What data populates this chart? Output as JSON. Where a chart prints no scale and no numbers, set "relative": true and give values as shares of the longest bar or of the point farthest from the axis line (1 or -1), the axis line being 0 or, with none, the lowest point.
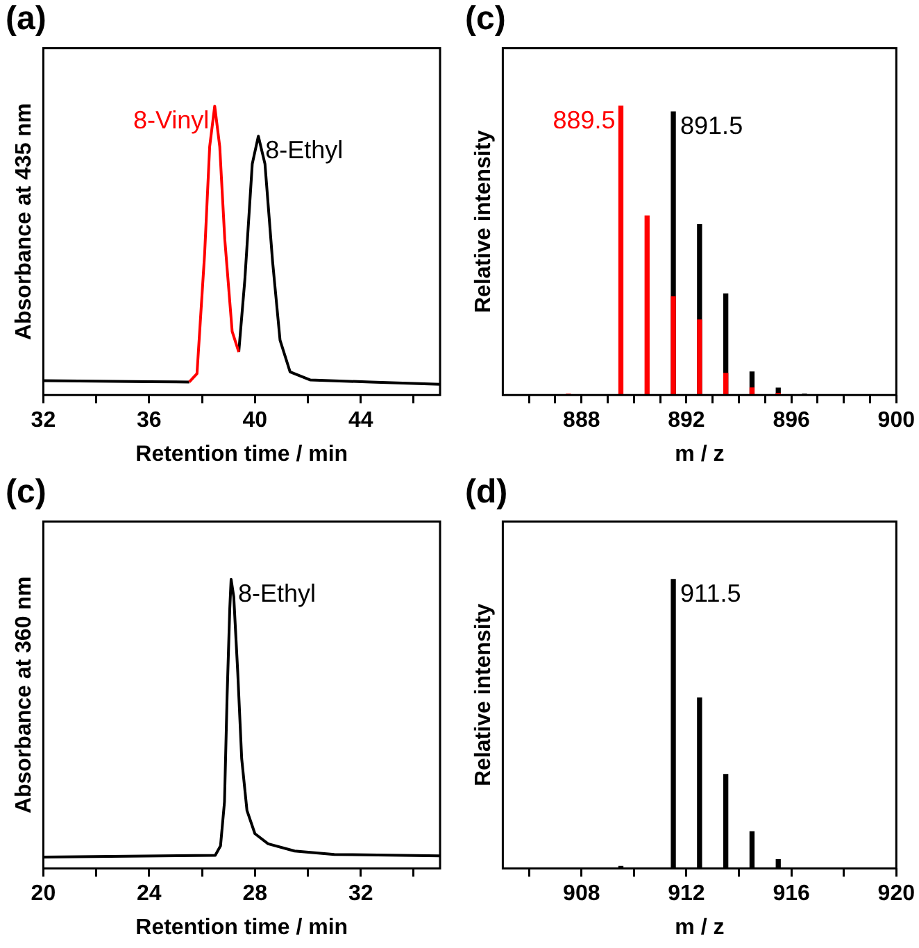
{
  "chart_data": [
    {
      "type": "line",
      "title": "(a)",
      "xlabel": "Retention time / min",
      "ylabel": "Absorbance at 435 nm",
      "relative": true,
      "xlim": [
        32,
        47
      ],
      "xticks": [
        32,
        {
          "value": 34,
          "label": null
        },
        36,
        {
          "value": 38,
          "label": null
        },
        40,
        {
          "value": 42,
          "label": null
        },
        44,
        {
          "value": 46,
          "label": null
        }
      ],
      "series": [
        {
          "name": "8-Vinyl",
          "color": "#ff0000",
          "x": [
            37.52,
            37.81,
            38.1,
            38.29,
            38.48,
            38.67,
            38.86,
            39.14,
            39.39
          ],
          "values": [
            0.045,
            0.074,
            0.49,
            0.86,
            1,
            0.86,
            0.54,
            0.22,
            0.149
          ]
        },
        {
          "name": "8-Ethyl",
          "color": "#000000",
          "x": [
            32,
            34,
            36,
            37.52,
            38.5,
            39.39,
            39.62,
            39.9,
            40.13,
            40.38,
            40.67,
            40.95,
            41.33,
            42.1,
            44.38,
            47
          ],
          "values": [
            0.05,
            0.048,
            0.046,
            0.045,
            null,
            0.149,
            0.4,
            0.8,
            0.896,
            0.8,
            0.46,
            0.19,
            0.08,
            0.052,
            0.045,
            0.037
          ]
        }
      ]
    },
    {
      "type": "bar",
      "title": "(c)",
      "xlabel": "m / z",
      "ylabel": "Relative intensity",
      "relative": true,
      "xlim": [
        885,
        900
      ],
      "xticks": [
        {
          "value": 886,
          "label": null
        },
        {
          "value": 887,
          "label": null
        },
        888,
        {
          "value": 889,
          "label": null
        },
        {
          "value": 890,
          "label": null
        },
        {
          "value": 891,
          "label": null
        },
        892,
        {
          "value": 893,
          "label": null
        },
        {
          "value": 894,
          "label": null
        },
        {
          "value": 895,
          "label": null
        },
        896,
        {
          "value": 897,
          "label": null
        },
        {
          "value": 898,
          "label": null
        },
        {
          "value": 899,
          "label": null
        },
        900
      ],
      "series": [
        {
          "color": "#ff0000",
          "x": [
            887.5,
            889.5,
            890.5,
            891.5,
            892.5,
            893.5,
            894.5,
            895.5
          ],
          "values": [
            0.003,
            1,
            0.62,
            0.34,
            0.26,
            0.075,
            0.025,
            0.006
          ]
        },
        {
          "color": "#000000",
          "x": [
            891.5,
            892.5,
            893.5,
            894.5,
            895.5,
            896.5
          ],
          "values": [
            0.98,
            0.59,
            0.35,
            0.08,
            0.024,
            0.003
          ]
        }
      ],
      "annotations": [
        {
          "text": "889.5",
          "x": 889.5,
          "y": 1
        },
        {
          "text": "891.5",
          "x": 891.5,
          "y": 0.98
        }
      ]
    },
    {
      "type": "line",
      "title": "(c)",
      "xlabel": "Retention time / min",
      "ylabel": "Absorbance at 360 nm",
      "relative": true,
      "xlim": [
        20,
        35
      ],
      "xticks": [
        20,
        {
          "value": 22,
          "label": null
        },
        24,
        {
          "value": 26,
          "label": null
        },
        28,
        {
          "value": 30,
          "label": null
        },
        32,
        {
          "value": 34,
          "label": null
        }
      ],
      "series": [
        {
          "name": "8-Ethyl",
          "color": "#000000",
          "x": [
            20,
            26.5,
            26.7,
            26.85,
            26.95,
            27.05,
            27.1,
            27.2,
            27.35,
            27.5,
            27.7,
            28,
            28.5,
            29.5,
            31,
            35
          ],
          "values": [
            0.039,
            0.045,
            0.078,
            0.23,
            0.6,
            0.9,
            1,
            0.94,
            0.68,
            0.38,
            0.2,
            0.12,
            0.085,
            0.06,
            0.048,
            0.043
          ]
        }
      ]
    },
    {
      "type": "bar",
      "title": "(d)",
      "xlabel": "m / z",
      "ylabel": "Relative intensity",
      "relative": true,
      "xlim": [
        905,
        920
      ],
      "xticks": [
        {
          "value": 906,
          "label": null
        },
        908,
        {
          "value": 910,
          "label": null
        },
        912,
        {
          "value": 914,
          "label": null
        },
        916,
        {
          "value": 918,
          "label": null
        },
        920
      ],
      "series": [
        {
          "color": "#000000",
          "x": [
            909.5,
            911.5,
            912.5,
            913.5,
            914.5,
            915.5
          ],
          "values": [
            0.007,
            1,
            0.59,
            0.325,
            0.127,
            0.03
          ]
        }
      ],
      "annotations": [
        {
          "text": "911.5",
          "x": 911.5,
          "y": 1
        }
      ]
    }
  ]
}
